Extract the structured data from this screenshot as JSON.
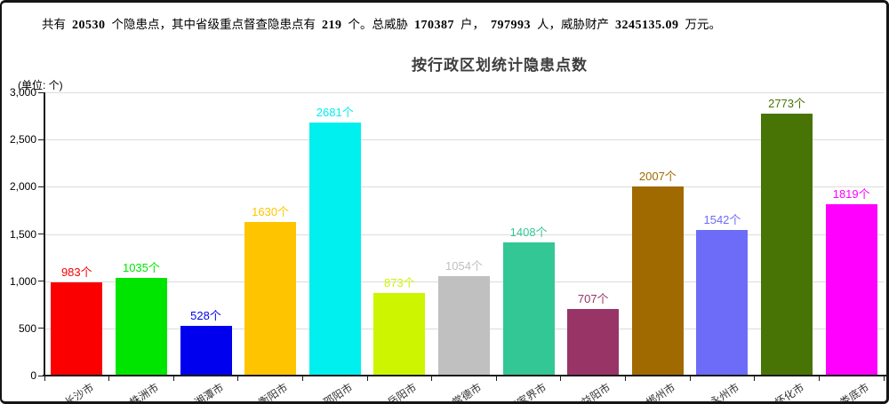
{
  "colors": {
    "border": "#151515",
    "axis": "#1a1a1a",
    "grid": "#dcdcdc",
    "title": "#3d3d3d",
    "category_label": "#333333",
    "stats_text": "#000000"
  },
  "header": {
    "segments": [
      {
        "text": "共有",
        "bold": false
      },
      {
        "text": "20530",
        "bold": true
      },
      {
        "text": "个隐患点，其中省级重点督查隐患点有",
        "bold": false
      },
      {
        "text": "219",
        "bold": true
      },
      {
        "text": "个。总威胁",
        "bold": false
      },
      {
        "text": "170387",
        "bold": true
      },
      {
        "text": "户，",
        "bold": false
      },
      {
        "text": "797993",
        "bold": true
      },
      {
        "text": "人，威胁财产",
        "bold": false
      },
      {
        "text": "3245135.09",
        "bold": true
      },
      {
        "text": "万元。",
        "bold": false
      }
    ]
  },
  "chart_data": {
    "type": "bar",
    "title": "按行政区划统计隐患点数",
    "unit_label": "(单位: 个)",
    "categories": [
      "长沙市",
      "株洲市",
      "湘潭市",
      "衡阳市",
      "邵阳市",
      "岳阳市",
      "常德市",
      "张家界市",
      "益阳市",
      "郴州市",
      "永州市",
      "怀化市",
      "娄底市"
    ],
    "values": [
      983,
      1035,
      528,
      1630,
      2681,
      873,
      1054,
      1408,
      707,
      2007,
      1542,
      2773,
      1819
    ],
    "bar_colors": [
      "#fa0000",
      "#00e500",
      "#0000ee",
      "#ffc400",
      "#00efef",
      "#cdf500",
      "#c0c0c1",
      "#32c795",
      "#983566",
      "#a06a00",
      "#6c6cf8",
      "#487406",
      "#ff00ff"
    ],
    "value_suffix": "个",
    "xlabel": "",
    "ylabel": "",
    "ylim": [
      0,
      3000
    ],
    "ytick_interval": 500,
    "yticks": [
      "0",
      "500",
      "1,000",
      "1,500",
      "2,000",
      "2,500",
      "3,000"
    ],
    "grid": true,
    "legend": "none",
    "bar_label_position": "above",
    "category_label_rotation_deg": -33
  }
}
